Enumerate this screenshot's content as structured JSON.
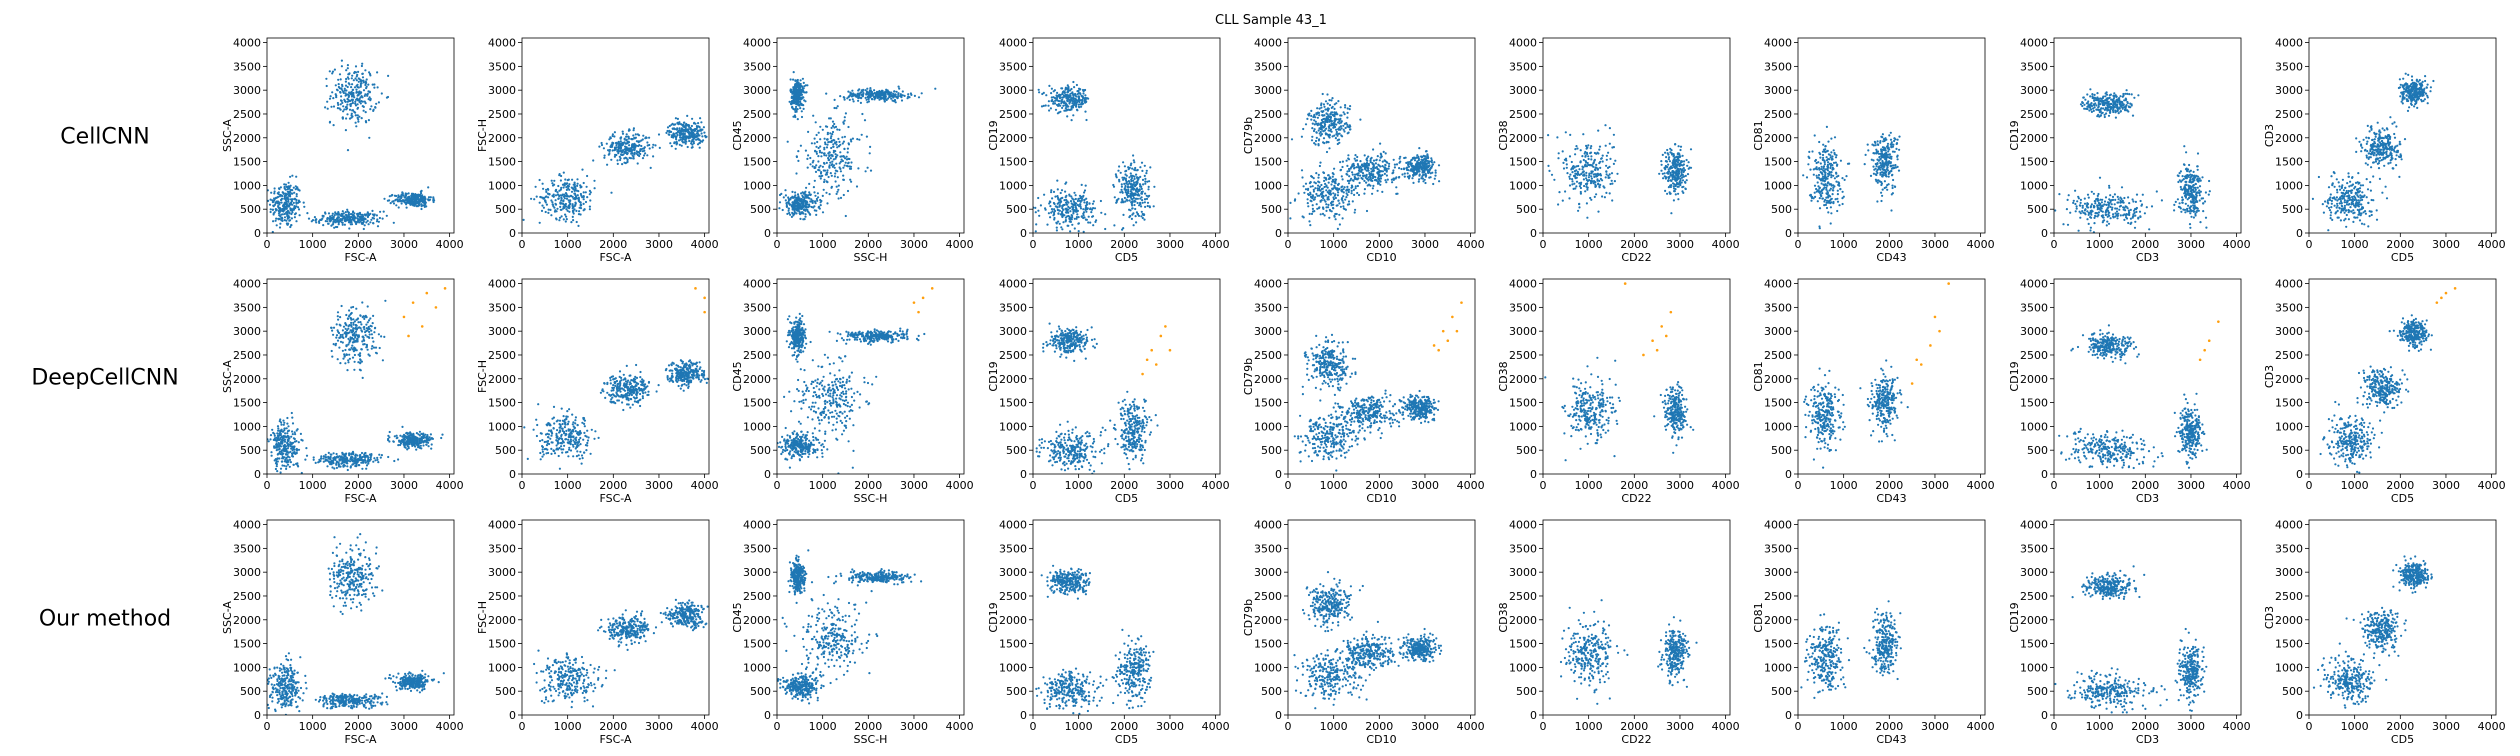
{
  "figure": {
    "title": "CLL Sample 43_1",
    "row_labels": [
      "CellCNN",
      "DeepCellCNN",
      "Our method"
    ],
    "colors": {
      "cells": "#1f77b4",
      "selected": "#ff9f0e"
    }
  },
  "chart_data": {
    "type": "scatter",
    "title": "CLL Sample 43_1",
    "rows": [
      "CellCNN",
      "DeepCellCNN",
      "Our method"
    ],
    "xlim": [
      0,
      4096
    ],
    "ylim": [
      0,
      4096
    ],
    "xticks": [
      0,
      1000,
      2000,
      3000,
      4000
    ],
    "yticks": [
      0,
      500,
      1000,
      1500,
      2000,
      2500,
      3000,
      3500,
      4000
    ],
    "grid": false,
    "panels": [
      {
        "xlabel": "FSC-A",
        "ylabel": "SSC-A",
        "clusters": [
          {
            "center": [
              400,
              600
            ],
            "spread": [
              350,
              500
            ]
          },
          {
            "center": [
              1800,
              300
            ],
            "spread": [
              700,
              150
            ]
          },
          {
            "center": [
              1900,
              2900
            ],
            "spread": [
              500,
              600
            ]
          },
          {
            "center": [
              3200,
              700
            ],
            "spread": [
              400,
              150
            ]
          }
        ]
      },
      {
        "xlabel": "FSC-A",
        "ylabel": "FSC-H",
        "clusters": [
          {
            "center": [
              1000,
              750
            ],
            "spread": [
              600,
              450
            ]
          },
          {
            "center": [
              2300,
              1800
            ],
            "spread": [
              500,
              300
            ]
          },
          {
            "center": [
              3600,
              2100
            ],
            "spread": [
              400,
              250
            ]
          }
        ]
      },
      {
        "xlabel": "SSC-H",
        "ylabel": "CD45",
        "clusters": [
          {
            "center": [
              450,
              2900
            ],
            "spread": [
              150,
              350
            ]
          },
          {
            "center": [
              2200,
              2900
            ],
            "spread": [
              700,
              120
            ]
          },
          {
            "center": [
              500,
              600
            ],
            "spread": [
              400,
              250
            ]
          },
          {
            "center": [
              1200,
              1600
            ],
            "spread": [
              700,
              800
            ]
          }
        ]
      },
      {
        "xlabel": "CD5",
        "ylabel": "CD19",
        "clusters": [
          {
            "center": [
              800,
              2800
            ],
            "spread": [
              450,
              250
            ]
          },
          {
            "center": [
              800,
              500
            ],
            "spread": [
              600,
              400
            ]
          },
          {
            "center": [
              2200,
              900
            ],
            "spread": [
              350,
              600
            ]
          }
        ]
      },
      {
        "xlabel": "CD10",
        "ylabel": "CD79b",
        "clusters": [
          {
            "center": [
              900,
              2300
            ],
            "spread": [
              450,
              450
            ]
          },
          {
            "center": [
              900,
              800
            ],
            "spread": [
              650,
              500
            ]
          },
          {
            "center": [
              2900,
              1400
            ],
            "spread": [
              350,
              250
            ]
          },
          {
            "center": [
              1800,
              1300
            ],
            "spread": [
              600,
              350
            ]
          }
        ]
      },
      {
        "xlabel": "CD22",
        "ylabel": "CD38",
        "clusters": [
          {
            "center": [
              1000,
              1300
            ],
            "spread": [
              550,
              700
            ]
          },
          {
            "center": [
              2900,
              1300
            ],
            "spread": [
              250,
              500
            ]
          }
        ]
      },
      {
        "xlabel": "CD43",
        "ylabel": "CD81",
        "clusters": [
          {
            "center": [
              600,
              1200
            ],
            "spread": [
              350,
              700
            ]
          },
          {
            "center": [
              1900,
              1500
            ],
            "spread": [
              300,
              600
            ]
          }
        ]
      },
      {
        "xlabel": "CD3",
        "ylabel": "CD19",
        "clusters": [
          {
            "center": [
              1200,
              2700
            ],
            "spread": [
              550,
              250
            ]
          },
          {
            "center": [
              1200,
              500
            ],
            "spread": [
              900,
              350
            ]
          },
          {
            "center": [
              3000,
              900
            ],
            "spread": [
              250,
              550
            ]
          }
        ]
      },
      {
        "xlabel": "CD5",
        "ylabel": "CD3",
        "clusters": [
          {
            "center": [
              2300,
              2950
            ],
            "spread": [
              300,
              250
            ]
          },
          {
            "center": [
              900,
              700
            ],
            "spread": [
              500,
              500
            ]
          },
          {
            "center": [
              1600,
              1800
            ],
            "spread": [
              400,
              400
            ]
          }
        ]
      }
    ],
    "series": [
      {
        "row": "CellCNN",
        "selected_points": []
      },
      {
        "row": "DeepCellCNN",
        "selected_points": [
          [
            [
              3000,
              3300
            ],
            [
              3200,
              3600
            ],
            [
              3500,
              3800
            ],
            [
              3700,
              3500
            ],
            [
              3900,
              3900
            ],
            [
              3400,
              3100
            ],
            [
              3100,
              2900
            ]
          ],
          [
            [
              4000,
              3700
            ],
            [
              3800,
              3900
            ],
            [
              4000,
              3400
            ]
          ],
          [
            [
              3000,
              3600
            ],
            [
              3200,
              3700
            ],
            [
              3400,
              3900
            ],
            [
              3100,
              3400
            ]
          ],
          [
            [
              2400,
              2100
            ],
            [
              2600,
              2600
            ],
            [
              2800,
              2900
            ],
            [
              2700,
              2300
            ],
            [
              2900,
              3100
            ],
            [
              3000,
              2600
            ],
            [
              2500,
              2400
            ]
          ],
          [
            [
              3200,
              2700
            ],
            [
              3400,
              3000
            ],
            [
              3600,
              3300
            ],
            [
              3800,
              3600
            ],
            [
              3500,
              2800
            ],
            [
              3300,
              2600
            ],
            [
              3700,
              3000
            ]
          ],
          [
            [
              2200,
              2500
            ],
            [
              2400,
              2800
            ],
            [
              2600,
              3100
            ],
            [
              2800,
              3400
            ],
            [
              2500,
              2600
            ],
            [
              2700,
              2900
            ],
            [
              1800,
              4000
            ]
          ],
          [
            [
              2500,
              1900
            ],
            [
              2700,
              2300
            ],
            [
              2900,
              2700
            ],
            [
              3100,
              3000
            ],
            [
              2600,
              2400
            ],
            [
              3000,
              3300
            ],
            [
              3300,
              4000
            ]
          ],
          [
            [
              3200,
              2400
            ],
            [
              3400,
              2800
            ],
            [
              3600,
              3200
            ],
            [
              3300,
              2600
            ]
          ],
          [
            [
              2800,
              3600
            ],
            [
              3000,
              3800
            ],
            [
              3200,
              3900
            ],
            [
              2900,
              3700
            ]
          ]
        ]
      },
      {
        "row": "Our method",
        "selected_points": []
      }
    ]
  }
}
